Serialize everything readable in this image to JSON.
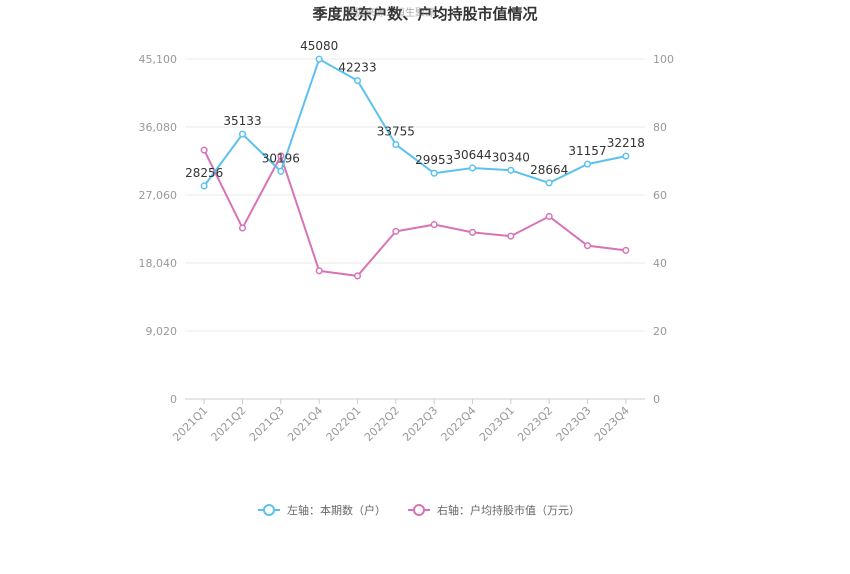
{
  "chart_data": {
    "type": "line",
    "title": "季度股东户数、户均持股市值情况",
    "watermark": "数据来源：恒生聚源",
    "categories": [
      "2021Q1",
      "2021Q2",
      "2021Q3",
      "2021Q4",
      "2022Q1",
      "2022Q2",
      "2022Q3",
      "2022Q4",
      "2023Q1",
      "2023Q2",
      "2023Q3",
      "2023Q4"
    ],
    "left_axis": {
      "ticks": [
        "0",
        "9,020",
        "18,040",
        "27,060",
        "36,080",
        "45,100"
      ],
      "min": 0,
      "max": 45100
    },
    "right_axis": {
      "ticks": [
        "0",
        "20",
        "40",
        "60",
        "80",
        "100"
      ],
      "min": 0,
      "max": 100
    },
    "series": [
      {
        "name": "左轴：本期数（户）",
        "axis": "left",
        "color": "#5bc2f0",
        "values": [
          28256,
          35133,
          30196,
          45080,
          42233,
          33755,
          29953,
          30644,
          30340,
          28664,
          31157,
          32218
        ],
        "labels": [
          "28256",
          "35133",
          "30196",
          "45080",
          "42233",
          "33755",
          "29953",
          "30644",
          "30340",
          "28664",
          "31157",
          "32218"
        ]
      },
      {
        "name": "右轴：户均持股市值（万元）",
        "axis": "right",
        "color": "#d873b6",
        "values": [
          73.2,
          50.3,
          71.5,
          37.7,
          36.2,
          49.3,
          51.3,
          49.0,
          47.9,
          53.7,
          45.1,
          43.7
        ]
      }
    ],
    "grid": true,
    "legend_position": "bottom-center"
  }
}
